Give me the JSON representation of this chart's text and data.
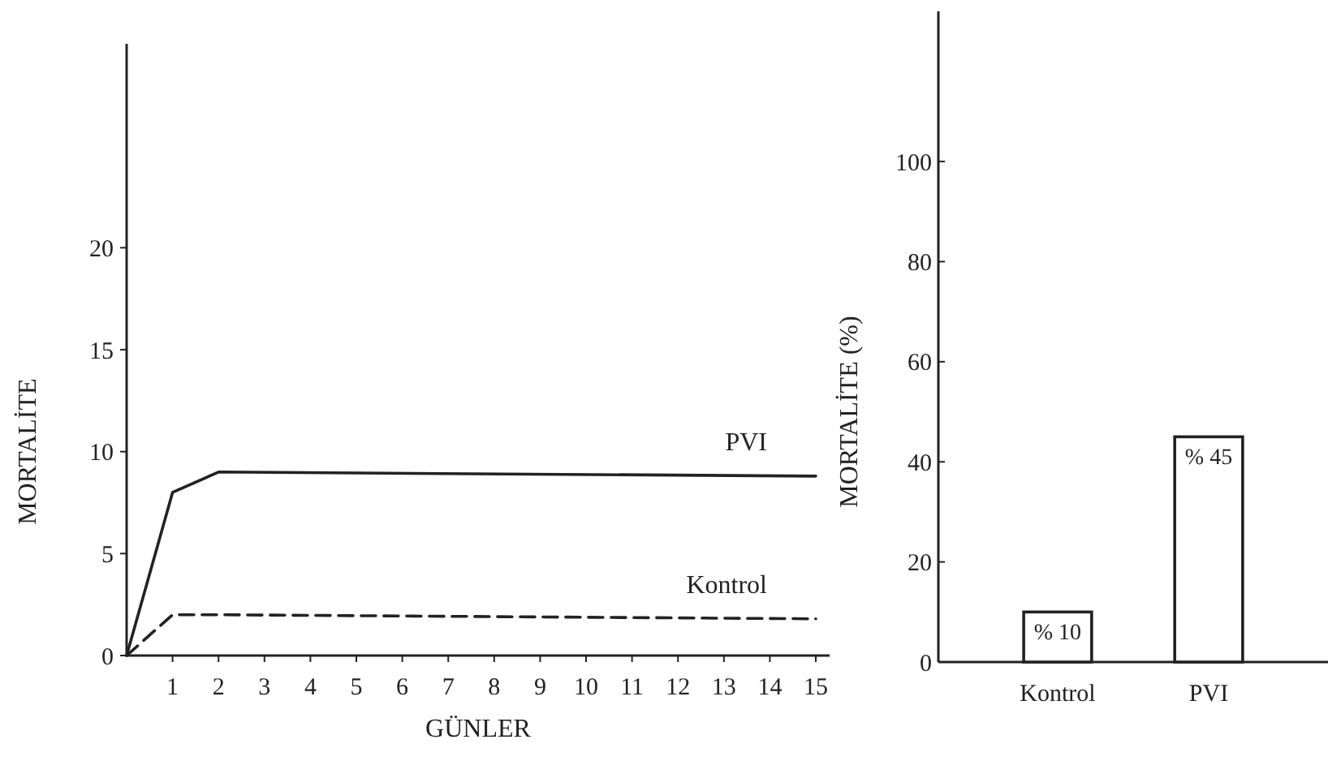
{
  "chart_data": [
    {
      "type": "line",
      "xlabel": "GÜNLER",
      "ylabel": "MORTALİTE",
      "x": [
        0,
        1,
        2,
        15
      ],
      "xlim": [
        0,
        15.3
      ],
      "ylim": [
        0,
        30
      ],
      "xticks": [
        1,
        2,
        3,
        4,
        5,
        6,
        7,
        8,
        9,
        10,
        11,
        12,
        13,
        14,
        15
      ],
      "yticks": [
        0,
        5,
        10,
        15,
        20
      ],
      "series": [
        {
          "name": "PVI",
          "color": "#222222",
          "values": [
            0,
            8,
            9,
            8.8
          ],
          "line_style": "solid"
        },
        {
          "name": "Kontrol",
          "color": "#222222",
          "values": [
            0,
            2,
            2,
            1.8
          ],
          "line_style": "dashed"
        }
      ]
    },
    {
      "type": "bar",
      "ylabel": "MORTALİTE (%)",
      "categories": [
        "Kontrol",
        "PVI"
      ],
      "values": [
        10,
        45
      ],
      "value_labels": [
        "% 10",
        "% 45"
      ],
      "color": "#ffffff",
      "ylim": [
        0,
        130
      ],
      "yticks": [
        0,
        20,
        40,
        60,
        80,
        100
      ]
    }
  ]
}
